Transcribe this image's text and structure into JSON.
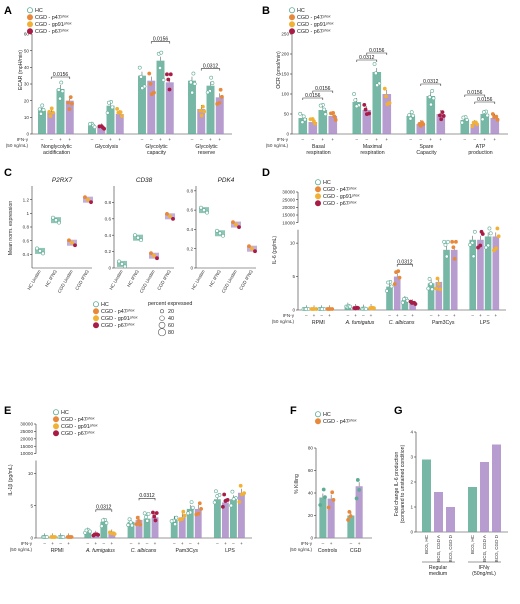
{
  "colors": {
    "hc": "#5eac95",
    "cgd": "#a98bc7",
    "p47": "#e8883a",
    "gp91": "#f2b134",
    "p67": "#a81c46",
    "dot_open_edge": "#5eac95"
  },
  "chart_data": [
    {
      "panel": "A",
      "type": "bar",
      "ylabel": "ECAR (mpH/min)",
      "ylim": [
        0,
        60
      ],
      "yticks": [
        0,
        10,
        20,
        30,
        40,
        50,
        60
      ],
      "legend": [
        {
          "key": "hc",
          "label": "HC"
        },
        {
          "key": "p47",
          "label": "CGD - p47phox"
        },
        {
          "key": "gp91",
          "label": "CGD - gp91phox"
        },
        {
          "key": "p67",
          "label": "CGD - p67phox"
        }
      ],
      "stim_label": "IFN-γ",
      "stim_sub": "(50 ng/mL)",
      "stim_signs": [
        "–",
        "–",
        "+",
        "+"
      ],
      "groups": [
        {
          "label": "Nonglycolytic acidification",
          "values": [
            14,
            13,
            27,
            20
          ]
        },
        {
          "label": "Glycolysis",
          "values": [
            5,
            4,
            17,
            12
          ]
        },
        {
          "label": "Glycolytic capacity",
          "values": [
            35,
            32,
            44,
            31
          ]
        },
        {
          "label": "Glycolytic reserve",
          "values": [
            32,
            15,
            29,
            22
          ]
        }
      ],
      "annotations": [
        {
          "group": 0,
          "from": 1,
          "to": 3,
          "text": "0.0156"
        },
        {
          "group": 2,
          "from": 1,
          "to": 3,
          "text": "0.0156"
        },
        {
          "group": 3,
          "from": 1,
          "to": 3,
          "text": "0.0312"
        }
      ]
    },
    {
      "panel": "B",
      "type": "bar",
      "ylabel": "OCR (pmol/min)",
      "ylim": [
        0,
        250
      ],
      "yticks": [
        0,
        50,
        100,
        150,
        200,
        250
      ],
      "legend": [
        {
          "key": "hc",
          "label": "HC"
        },
        {
          "key": "p47",
          "label": "CGD - p47phox"
        },
        {
          "key": "gp91",
          "label": "CGD - gp91phox"
        },
        {
          "key": "p67",
          "label": "CGD - p67phox"
        }
      ],
      "stim_label": "IFN-γ",
      "stim_sub": "(50 ng/mL)",
      "stim_signs": [
        "–",
        "–",
        "+",
        "+"
      ],
      "groups": [
        {
          "label": "Basal respiration",
          "values": [
            40,
            30,
            60,
            45
          ]
        },
        {
          "label": "Maximal respiration",
          "values": [
            80,
            60,
            155,
            100
          ]
        },
        {
          "label": "Spare Capacity",
          "values": [
            45,
            25,
            95,
            50
          ]
        },
        {
          "label": "ATP production",
          "values": [
            35,
            25,
            50,
            40
          ]
        }
      ],
      "annotations": [
        {
          "group": 0,
          "from": 0,
          "to": 2,
          "text": "0.0156"
        },
        {
          "group": 0,
          "from": 1,
          "to": 3,
          "text": "0.0156"
        },
        {
          "group": 1,
          "from": 0,
          "to": 2,
          "text": "0.0312"
        },
        {
          "group": 1,
          "from": 1,
          "to": 3,
          "text": "0.0156"
        },
        {
          "group": 2,
          "from": 1,
          "to": 3,
          "text": "0.0312"
        },
        {
          "group": 3,
          "from": 0,
          "to": 2,
          "text": "0.0156"
        },
        {
          "group": 3,
          "from": 1,
          "to": 3,
          "text": "0.0156"
        }
      ]
    },
    {
      "panel": "C",
      "type": "scatter",
      "ylabel": "Mean norm. expression",
      "categories": [
        "HC Unstim",
        "HC IFNG",
        "CGD Unstim",
        "CGD IFNG"
      ],
      "genes": [
        {
          "name": "P2RX7",
          "ylim": [
            0.2,
            1.4
          ],
          "yticks": [
            0.4,
            0.6,
            0.8,
            1.0,
            1.2
          ],
          "values": [
            0.45,
            0.9,
            0.57,
            1.2
          ]
        },
        {
          "name": "CD38",
          "ylim": [
            0,
            1.0
          ],
          "yticks": [
            0,
            0.2,
            0.4,
            0.6,
            0.8
          ],
          "values": [
            0.05,
            0.37,
            0.15,
            0.63
          ]
        },
        {
          "name": "PDK4",
          "ylim": [
            0,
            0.85
          ],
          "yticks": [
            0,
            0.2,
            0.4,
            0.6,
            0.8
          ],
          "values": [
            0.6,
            0.36,
            0.45,
            0.2
          ]
        }
      ],
      "legend": [
        {
          "key": "hc",
          "label": "HC"
        },
        {
          "key": "p47",
          "label": "CGD - p47phox"
        },
        {
          "key": "gp91",
          "label": "CGD - gp91phox"
        },
        {
          "key": "p67",
          "label": "CGD - p67phox"
        }
      ],
      "size_legend_title": "percent expressed",
      "size_legend": [
        20,
        40,
        60,
        80
      ]
    },
    {
      "panel": "D",
      "type": "bar",
      "ylabel": "IL-6 (pg/mL)",
      "ytick_labels": [
        "0",
        "5",
        "10",
        "10000",
        "15000",
        "20000",
        "25000",
        "30000"
      ],
      "legend": [
        {
          "key": "hc",
          "label": "HC"
        },
        {
          "key": "p47",
          "label": "CGD - p47phox"
        },
        {
          "key": "gp91",
          "label": "CGD - gp91phox"
        },
        {
          "key": "p67",
          "label": "CGD - p67phox"
        }
      ],
      "stim_label": "IFN-γ",
      "stim_sub": "(50 ng/mL)",
      "stim_signs": [
        "–",
        "+",
        "–",
        "+"
      ],
      "groups": [
        {
          "label": "RPMI",
          "values": [
            0.1,
            0.1,
            0.1,
            0.1
          ]
        },
        {
          "label": "A. fumigatus",
          "values": [
            0.5,
            0.3,
            0.2,
            0.3
          ]
        },
        {
          "label": "C. albicans",
          "values": [
            3.5,
            5.0,
            1.5,
            1.0
          ]
        },
        {
          "label": "Pam3Cys",
          "values": [
            4.0,
            4.2,
            9.0,
            9.0
          ]
        },
        {
          "label": "LPS",
          "values": [
            10.5,
            10.5,
            11.0,
            11.0
          ]
        }
      ],
      "annotations": [
        {
          "group": 2,
          "from": 1,
          "to": 3,
          "text": "0.0312"
        }
      ]
    },
    {
      "panel": "E",
      "type": "bar",
      "ylabel": "IL-1β (pg/mL)",
      "ytick_labels": [
        "0",
        "5",
        "10",
        "10000",
        "15000",
        "20000",
        "25000",
        "30000"
      ],
      "legend": [
        {
          "key": "hc",
          "label": "HC"
        },
        {
          "key": "p47",
          "label": "CGD - p47phox"
        },
        {
          "key": "gp91",
          "label": "CGD - gp91phox"
        },
        {
          "key": "p67",
          "label": "CGD - p67phox"
        }
      ],
      "stim_label": "IFN-γ",
      "stim_sub": "(50 ng/mL)",
      "stim_signs": [
        "–",
        "+",
        "–",
        "+"
      ],
      "groups": [
        {
          "label": "RPMI",
          "values": [
            0.1,
            0.1,
            0.1,
            0.1
          ]
        },
        {
          "label": "A. fumigatus",
          "values": [
            1.0,
            0.5,
            2.5,
            0.7
          ]
        },
        {
          "label": "C. albicans",
          "values": [
            2.5,
            2.8,
            3.0,
            3.2
          ]
        },
        {
          "label": "Pam3Cys",
          "values": [
            2.8,
            3.2,
            4.5,
            4.5
          ]
        },
        {
          "label": "LPS",
          "values": [
            6.0,
            5.5,
            6.0,
            7.0
          ]
        }
      ],
      "annotations": [
        {
          "group": 1,
          "from": 1,
          "to": 3,
          "text": "0.0312"
        },
        {
          "group": 2,
          "from": 1,
          "to": 3,
          "text": "0.0312"
        }
      ]
    },
    {
      "panel": "F",
      "type": "bar",
      "ylabel": "% Killing",
      "ylim": [
        0,
        80
      ],
      "yticks": [
        0,
        20,
        40,
        60,
        80
      ],
      "legend": [
        {
          "key": "hc",
          "label": "HC"
        },
        {
          "key": "p47",
          "label": "CGD - p47phox"
        }
      ],
      "stim_label": "IFN-γ",
      "stim_sub": "(50 ng/mL)",
      "stim_signs": [
        "–",
        "+"
      ],
      "groups": [
        {
          "label": "Controls",
          "values": [
            36,
            35
          ]
        },
        {
          "label": "CGD",
          "values": [
            20,
            46
          ]
        }
      ]
    },
    {
      "panel": "G",
      "type": "bar",
      "ylabel": "Fold change IL-6 production",
      "ylabel2": "(compared to unstained condition)",
      "ylim": [
        0,
        4
      ],
      "yticks": [
        0,
        1,
        2,
        3,
        4
      ],
      "groups": [
        {
          "label": "Regular medium",
          "bars": [
            {
              "label": "BCG, HC",
              "value": 2.9
            },
            {
              "label": "BCG, CGD A",
              "value": 1.6
            },
            {
              "label": "BCG, CGD D",
              "value": 1.0
            }
          ]
        },
        {
          "label": "IFNγ (50ng/mL)",
          "bars": [
            {
              "label": "BCG, HC",
              "value": 1.8
            },
            {
              "label": "BCG, CGD A",
              "value": 2.8
            },
            {
              "label": "BCG, CGD D",
              "value": 3.5
            }
          ]
        }
      ]
    }
  ]
}
